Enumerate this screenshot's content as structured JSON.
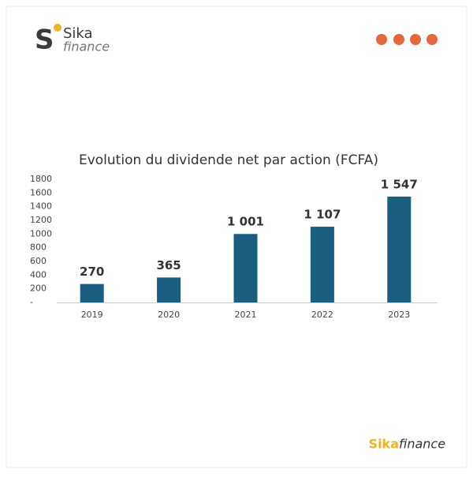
{
  "header": {
    "logo_mark": "S",
    "logo_name": "Sika",
    "logo_sub": "finance"
  },
  "chart_data": {
    "type": "bar",
    "title": "Evolution du dividende net par action (FCFA)",
    "categories": [
      "2019",
      "2020",
      "2021",
      "2022",
      "2023"
    ],
    "values": [
      270,
      365,
      1001,
      1107,
      1547
    ],
    "value_labels": [
      "270",
      "365",
      "1 001",
      "1 107",
      "1 547"
    ],
    "color": "#1b5f80",
    "ylim": [
      0,
      1800
    ],
    "yticks": [
      {
        "value": 0,
        "label": "-"
      },
      200,
      400,
      600,
      800,
      1000,
      1200,
      1400,
      1600,
      1800
    ],
    "grid": false
  },
  "footer": {
    "brand_a": "Sika",
    "brand_b": "finance"
  }
}
